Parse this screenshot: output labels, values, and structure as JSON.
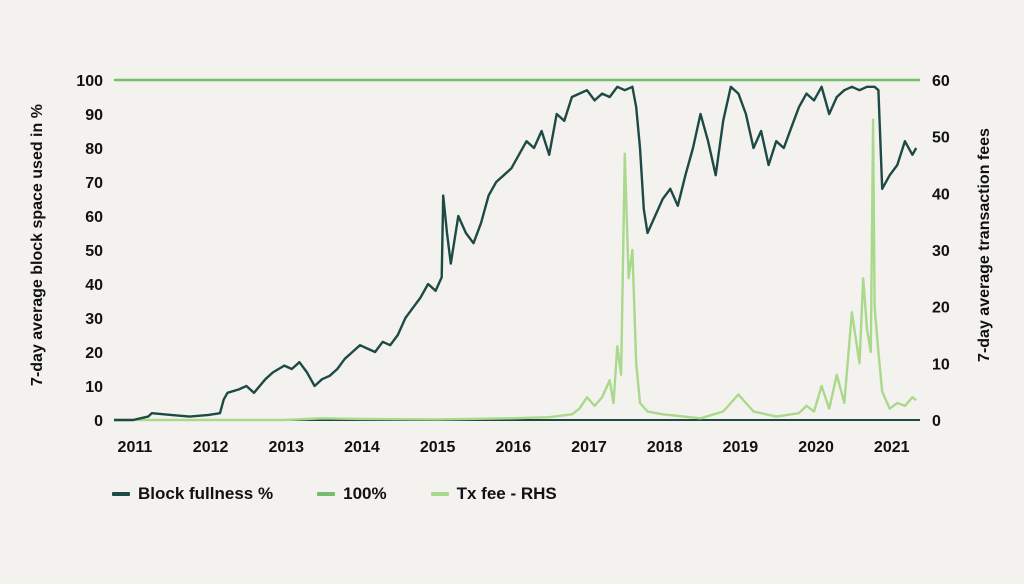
{
  "chart_data": {
    "type": "line",
    "title": "",
    "ylabel": "7-day average block space used in %",
    "y2label": "7-day average transaction fees",
    "xlim": [
      2010.75,
      2021.4
    ],
    "ylim": [
      0,
      100
    ],
    "y2lim": [
      0,
      60
    ],
    "x_ticks": [
      "2011",
      "2012",
      "2013",
      "2014",
      "2015",
      "2016",
      "2017",
      "2018",
      "2019",
      "2020",
      "2021"
    ],
    "y_ticks": [
      "0",
      "10",
      "20",
      "30",
      "40",
      "50",
      "60",
      "70",
      "80",
      "90",
      "100"
    ],
    "y2_ticks": [
      "0",
      "10",
      "20",
      "30",
      "40",
      "50",
      "60"
    ],
    "grid": false,
    "legend_position": "bottom-left",
    "series": [
      {
        "name": "Block fullness %",
        "axis": "left",
        "color": "#1e4a45",
        "x": [
          2010.75,
          2011.0,
          2011.1,
          2011.2,
          2011.25,
          2011.5,
          2011.75,
          2012.0,
          2012.15,
          2012.2,
          2012.25,
          2012.4,
          2012.5,
          2012.6,
          2012.75,
          2012.85,
          2013.0,
          2013.1,
          2013.2,
          2013.3,
          2013.4,
          2013.5,
          2013.6,
          2013.7,
          2013.8,
          2013.9,
          2014.0,
          2014.1,
          2014.2,
          2014.3,
          2014.4,
          2014.5,
          2014.6,
          2014.7,
          2014.8,
          2014.9,
          2015.0,
          2015.08,
          2015.1,
          2015.15,
          2015.2,
          2015.3,
          2015.4,
          2015.5,
          2015.6,
          2015.7,
          2015.8,
          2015.9,
          2016.0,
          2016.1,
          2016.2,
          2016.3,
          2016.4,
          2016.5,
          2016.6,
          2016.7,
          2016.8,
          2016.9,
          2017.0,
          2017.1,
          2017.2,
          2017.3,
          2017.4,
          2017.5,
          2017.6,
          2017.65,
          2017.7,
          2017.75,
          2017.8,
          2017.9,
          2018.0,
          2018.1,
          2018.2,
          2018.3,
          2018.4,
          2018.5,
          2018.6,
          2018.7,
          2018.8,
          2018.9,
          2019.0,
          2019.1,
          2019.2,
          2019.3,
          2019.4,
          2019.5,
          2019.6,
          2019.7,
          2019.8,
          2019.9,
          2020.0,
          2020.1,
          2020.2,
          2020.3,
          2020.4,
          2020.5,
          2020.6,
          2020.7,
          2020.75,
          2020.8,
          2020.85,
          2020.9,
          2021.0,
          2021.1,
          2021.2,
          2021.3,
          2021.35
        ],
        "values": [
          0,
          0,
          0.5,
          1,
          2,
          1.5,
          1,
          1.5,
          2,
          6,
          8,
          9,
          10,
          8,
          12,
          14,
          16,
          15,
          17,
          14,
          10,
          12,
          13,
          15,
          18,
          20,
          22,
          21,
          20,
          23,
          22,
          25,
          30,
          33,
          36,
          40,
          38,
          42,
          66,
          55,
          46,
          60,
          55,
          52,
          58,
          66,
          70,
          72,
          74,
          78,
          82,
          80,
          85,
          78,
          90,
          88,
          95,
          96,
          97,
          94,
          96,
          95,
          98,
          97,
          98,
          92,
          80,
          62,
          55,
          60,
          65,
          68,
          63,
          72,
          80,
          90,
          82,
          72,
          88,
          98,
          96,
          90,
          80,
          85,
          75,
          82,
          80,
          86,
          92,
          96,
          94,
          98,
          90,
          95,
          97,
          98,
          97,
          98,
          98,
          98,
          97,
          68,
          72,
          75,
          82,
          78,
          80
        ]
      },
      {
        "name": "100%",
        "axis": "left",
        "color": "#74bd6e",
        "x": [
          2010.75,
          2021.4
        ],
        "values": [
          100,
          100
        ]
      },
      {
        "name": "Tx fee - RHS",
        "axis": "right",
        "color": "#a9d98b",
        "x": [
          2010.75,
          2013.0,
          2013.5,
          2014.0,
          2015.0,
          2016.0,
          2016.5,
          2016.8,
          2016.9,
          2017.0,
          2017.1,
          2017.2,
          2017.3,
          2017.35,
          2017.4,
          2017.45,
          2017.5,
          2017.55,
          2017.6,
          2017.65,
          2017.7,
          2017.8,
          2018.0,
          2018.5,
          2018.8,
          2018.9,
          2019.0,
          2019.2,
          2019.5,
          2019.8,
          2019.9,
          2020.0,
          2020.1,
          2020.2,
          2020.3,
          2020.4,
          2020.5,
          2020.6,
          2020.65,
          2020.7,
          2020.75,
          2020.78,
          2020.8,
          2020.85,
          2020.9,
          2021.0,
          2021.1,
          2021.2,
          2021.3,
          2021.35
        ],
        "values": [
          0,
          0,
          0.3,
          0.2,
          0.1,
          0.3,
          0.5,
          1.0,
          2.0,
          4.0,
          2.5,
          4.0,
          7.0,
          3.0,
          13.0,
          8.0,
          47.0,
          25.0,
          30.0,
          10.0,
          3.0,
          1.5,
          1.0,
          0.3,
          1.5,
          3.0,
          4.5,
          1.5,
          0.6,
          1.2,
          2.5,
          1.5,
          6.0,
          2.0,
          8.0,
          3.0,
          19.0,
          10.0,
          25.0,
          16.0,
          12.0,
          53.0,
          20.0,
          12.0,
          5.0,
          2.0,
          3.0,
          2.5,
          4.0,
          3.5
        ]
      }
    ]
  }
}
